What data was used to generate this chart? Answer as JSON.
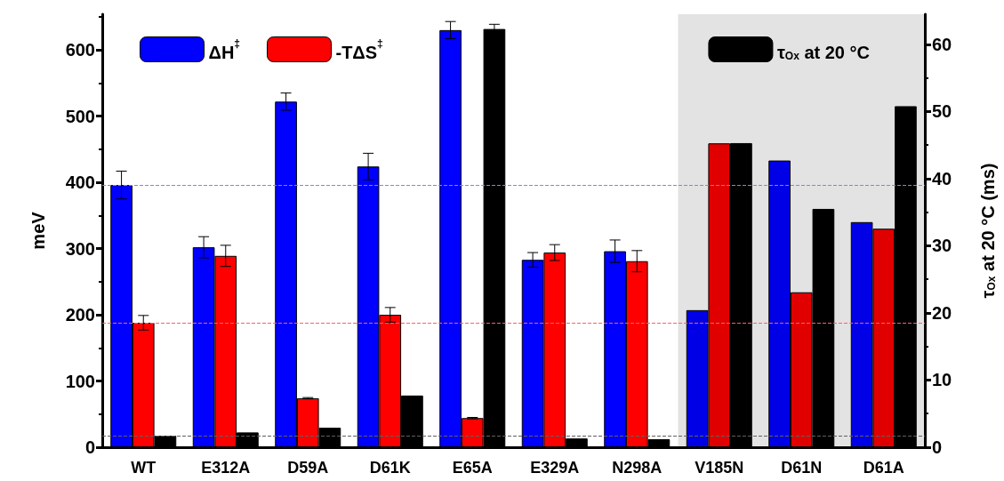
{
  "chart_data": {
    "type": "bar",
    "ylabel": "meV",
    "y2label": "τ$_{Ox}$ at 20 °C (ms)",
    "categories": [
      "WT",
      "E312A",
      "D59A",
      "D61K",
      "E65A",
      "E329A",
      "N298A",
      "V185N",
      "D61N",
      "D61A"
    ],
    "series": [
      {
        "name": "ΔH$^{‡}$",
        "color": "#0000ff",
        "colors": [
          "#0000ff",
          "#0000ff",
          "#0000ff",
          "#0000ff",
          "#0000ff",
          "#0000ff",
          "#0000ff",
          "#0000e6",
          "#0000e6",
          "#0000e6"
        ],
        "values": [
          396,
          302,
          522,
          424,
          630,
          283,
          296,
          207,
          433,
          340
        ],
        "errors": [
          21,
          16,
          13,
          20,
          13,
          11,
          17,
          null,
          null,
          null
        ]
      },
      {
        "name": "-TΔS$^{‡}$",
        "color": "#ff0000",
        "colors": [
          "#ff0000",
          "#ff0000",
          "#ff0000",
          "#ff0000",
          "#ff0000",
          "#ff0000",
          "#ff0000",
          "#e00000",
          "#e00000",
          "#e00000"
        ],
        "values": [
          188,
          289,
          74,
          200,
          44,
          294,
          281,
          459,
          234,
          330
        ],
        "errors": [
          11,
          16,
          1,
          11,
          1,
          12,
          16,
          null,
          null,
          null
        ]
      },
      {
        "name": "τ$_{Ox}$ at 20 °C",
        "color": "#000000",
        "axis": "y2",
        "values": [
          1.7,
          2.2,
          2.9,
          7.7,
          62.3,
          1.3,
          1.2,
          45.3,
          35.5,
          50.8
        ],
        "errors": [
          null,
          null,
          null,
          null,
          0.7,
          null,
          null,
          null,
          null,
          null
        ]
      }
    ],
    "ylim": [
      0,
      654
    ],
    "yticks": [
      0,
      100,
      200,
      300,
      400,
      500,
      600
    ],
    "y2lim": [
      0,
      64.5
    ],
    "y2ticks": [
      0,
      10,
      20,
      30,
      40,
      50,
      60
    ],
    "ref_lines": [
      {
        "axis": "y",
        "value": 396,
        "color": "#8080ff",
        "line_style": "dashed"
      },
      {
        "axis": "y",
        "value": 188,
        "color": "#ff6060",
        "line_style": "dashed"
      },
      {
        "axis": "y2",
        "value": 1.7,
        "color": "#606060",
        "line_style": "dashed"
      }
    ],
    "bands": [
      {
        "axis": "x",
        "from": "V185N",
        "to": "D61A",
        "color": "#e3e3e3"
      }
    ],
    "grid": false,
    "legend": "top"
  }
}
